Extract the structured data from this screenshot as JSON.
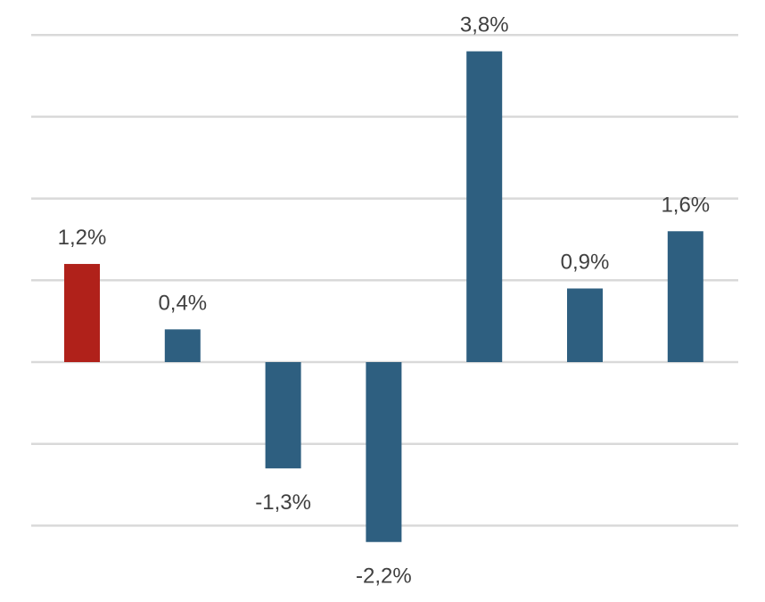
{
  "chart_data": {
    "type": "bar",
    "categories": [
      "",
      "",
      "",
      "",
      "",
      "",
      ""
    ],
    "values": [
      1.2,
      0.4,
      -1.3,
      -2.2,
      3.8,
      0.9,
      1.6
    ],
    "labels": [
      "1,2%",
      "0,4%",
      "-1,3%",
      "-2,2%",
      "3,8%",
      "0,9%",
      "1,6%"
    ],
    "unit": "%",
    "ylim": [
      -2.0,
      4.0
    ],
    "gridlines": [
      4.0,
      3.0,
      2.0,
      1.0,
      0.0,
      -1.0,
      -2.0
    ],
    "grid": true,
    "highlight_index": 0,
    "colors": {
      "highlight": "#b0211a",
      "bar": "#2e5f80",
      "grid": "#d9d9d9",
      "label": "#404040"
    }
  }
}
